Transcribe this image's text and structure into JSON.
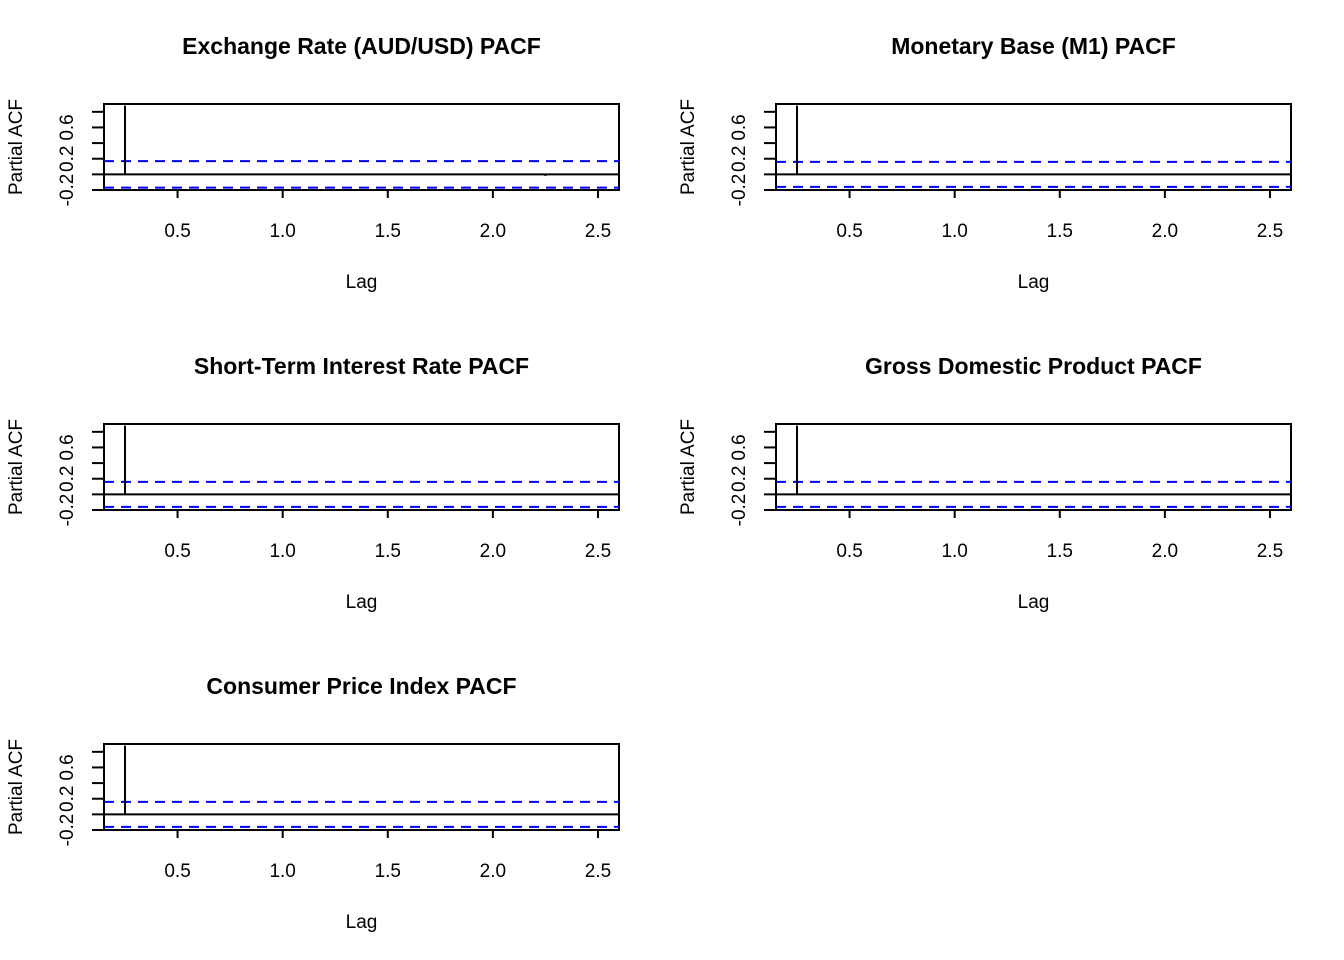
{
  "colors": {
    "confidence_band": "#0000ff",
    "bars": "#000000",
    "axes": "#000000",
    "background": "#ffffff"
  },
  "chart_data": [
    {
      "type": "bar",
      "title": "Exchange Rate (AUD/USD) PACF",
      "xlabel": "Lag",
      "ylabel": "Partial ACF",
      "xlim": [
        0.15,
        2.6
      ],
      "ylim": [
        -0.2,
        0.9
      ],
      "xticks": [
        "0.5",
        "1.0",
        "1.5",
        "2.0",
        "2.5"
      ],
      "yticks": [
        "-0.2",
        "0.2",
        "0.6"
      ],
      "lags": [
        0.25,
        0.5,
        0.75,
        1.0,
        1.25,
        1.5,
        1.75,
        2.0,
        2.25,
        2.5
      ],
      "values": [
        0.88,
        0.01,
        -0.01,
        0.0,
        0.01,
        -0.01,
        0.0,
        0.01,
        -0.02,
        0.0
      ],
      "conf_limit": 0.17,
      "grid": false,
      "legend": "none"
    },
    {
      "type": "bar",
      "title": "Monetary Base (M1) PACF",
      "xlabel": "Lag",
      "ylabel": "Partial ACF",
      "xlim": [
        0.15,
        2.6
      ],
      "ylim": [
        -0.2,
        0.9
      ],
      "xticks": [
        "0.5",
        "1.0",
        "1.5",
        "2.0",
        "2.5"
      ],
      "yticks": [
        "-0.2",
        "0.2",
        "0.6"
      ],
      "lags": [
        0.25,
        0.5,
        0.75,
        1.0,
        1.25,
        1.5,
        1.75,
        2.0,
        2.25,
        2.5
      ],
      "values": [
        0.88,
        0.0,
        -0.01,
        0.0,
        0.01,
        0.0,
        -0.01,
        0.0,
        0.01,
        -0.01
      ],
      "conf_limit": 0.16,
      "grid": false,
      "legend": "none"
    },
    {
      "type": "bar",
      "title": "Short-Term Interest Rate PACF",
      "xlabel": "Lag",
      "ylabel": "Partial ACF",
      "xlim": [
        0.15,
        2.6
      ],
      "ylim": [
        -0.2,
        0.9
      ],
      "xticks": [
        "0.5",
        "1.0",
        "1.5",
        "2.0",
        "2.5"
      ],
      "yticks": [
        "-0.2",
        "0.2",
        "0.6"
      ],
      "lags": [
        0.25,
        0.5,
        0.75,
        1.0,
        1.25,
        1.5,
        1.75,
        2.0,
        2.25,
        2.5
      ],
      "values": [
        0.88,
        0.01,
        0.0,
        -0.01,
        0.0,
        0.01,
        -0.01,
        0.0,
        0.0,
        0.01
      ],
      "conf_limit": 0.16,
      "grid": false,
      "legend": "none"
    },
    {
      "type": "bar",
      "title": "Gross Domestic Product PACF",
      "xlabel": "Lag",
      "ylabel": "Partial ACF",
      "xlim": [
        0.15,
        2.6
      ],
      "ylim": [
        -0.2,
        0.9
      ],
      "xticks": [
        "0.5",
        "1.0",
        "1.5",
        "2.0",
        "2.5"
      ],
      "yticks": [
        "-0.2",
        "0.2",
        "0.6"
      ],
      "lags": [
        0.25,
        0.5,
        0.75,
        1.0,
        1.25,
        1.5,
        1.75,
        2.0,
        2.25,
        2.5
      ],
      "values": [
        0.88,
        0.0,
        0.01,
        -0.01,
        0.0,
        0.0,
        0.01,
        -0.01,
        0.0,
        0.0
      ],
      "conf_limit": 0.16,
      "grid": false,
      "legend": "none"
    },
    {
      "type": "bar",
      "title": "Consumer Price Index PACF",
      "xlabel": "Lag",
      "ylabel": "Partial ACF",
      "xlim": [
        0.15,
        2.6
      ],
      "ylim": [
        -0.2,
        0.9
      ],
      "xticks": [
        "0.5",
        "1.0",
        "1.5",
        "2.0",
        "2.5"
      ],
      "yticks": [
        "-0.2",
        "0.2",
        "0.6"
      ],
      "lags": [
        0.25,
        0.5,
        0.75,
        1.0,
        1.25,
        1.5,
        1.75,
        2.0,
        2.25,
        2.5
      ],
      "values": [
        0.88,
        0.0,
        0.0,
        0.01,
        -0.01,
        0.0,
        0.0,
        0.01,
        -0.01,
        0.0
      ],
      "conf_limit": 0.16,
      "grid": false,
      "legend": "none"
    }
  ]
}
